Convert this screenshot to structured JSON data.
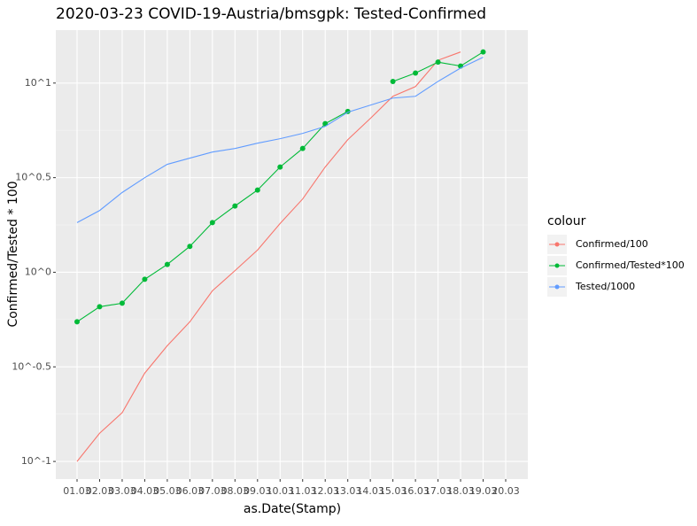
{
  "chart_data": {
    "type": "line",
    "title": "2020-03-23 COVID-19-Austria/bmsgpk: Tested-Confirmed",
    "x_label": "as.Date(Stamp)",
    "y_label": "Confirmed/Tested * 100",
    "legend_title": "colour",
    "legend_position": "right",
    "log_scale": true,
    "grid": true,
    "categories": [
      "01.03",
      "02.03",
      "03.03",
      "04.03",
      "05.03",
      "06.03",
      "07.03",
      "08.03",
      "09.03",
      "10.03",
      "11.03",
      "12.03",
      "13.03",
      "14.03",
      "15.03",
      "16.03",
      "17.03",
      "18.03",
      "19.03",
      "20.03"
    ],
    "ylim": [
      0.0807,
      19.05
    ],
    "yticks": [
      {
        "value": 0.1,
        "label": "10^-1"
      },
      {
        "value": 0.316228,
        "label": "10^-0.5"
      },
      {
        "value": 1,
        "label": "10^0"
      },
      {
        "value": 3.16228,
        "label": "10^0.5"
      },
      {
        "value": 10,
        "label": "10^1"
      }
    ],
    "series": [
      {
        "name": "Confirmed/100",
        "color": "#F8766D",
        "points": false,
        "values": [
          0.1,
          0.141,
          0.181,
          0.293,
          0.409,
          0.547,
          0.798,
          1.02,
          1.31,
          1.81,
          2.44,
          3.6,
          5.02,
          6.5,
          8.51,
          9.58,
          13.2,
          14.6,
          null,
          null
        ]
      },
      {
        "name": "Confirmed/Tested*100",
        "color": "#00BA38",
        "points": true,
        "values": [
          0.547,
          0.657,
          0.686,
          0.918,
          1.1,
          1.37,
          1.83,
          2.24,
          2.72,
          3.6,
          4.51,
          6.1,
          7.08,
          null,
          10.2,
          11.3,
          12.9,
          12.3,
          14.6,
          null
        ]
      },
      {
        "name": "Tested/1000",
        "color": "#619CFF",
        "points": false,
        "values": [
          1.83,
          2.12,
          2.64,
          3.16,
          3.72,
          4.01,
          4.32,
          4.51,
          4.81,
          5.08,
          5.42,
          5.9,
          7.01,
          7.64,
          8.33,
          8.51,
          10.2,
          12.0,
          13.7,
          null
        ]
      }
    ]
  }
}
